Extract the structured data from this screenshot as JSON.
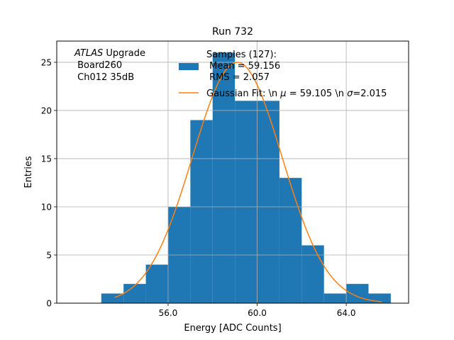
{
  "chart_data": {
    "type": "bar",
    "title": "Run 732",
    "xlabel": "Energy [ADC Counts]",
    "ylabel": "Entries",
    "xlim": [
      51.0,
      66.8
    ],
    "ylim": [
      0,
      27.2
    ],
    "xticks": [
      56.0,
      60.0,
      64.0
    ],
    "xtick_labels": [
      "56.0",
      "60.0",
      "64.0"
    ],
    "yticks": [
      0,
      5,
      10,
      15,
      20,
      25
    ],
    "ytick_labels": [
      "0",
      "5",
      "10",
      "15",
      "20",
      "25"
    ],
    "grid": true,
    "histogram": {
      "name": "Samples (127):",
      "color": "#1f77b4",
      "bin_edges": [
        53.0,
        54.0,
        55.0,
        56.0,
        57.0,
        58.0,
        59.0,
        60.0,
        61.0,
        62.0,
        63.0,
        64.0,
        65.0,
        66.0
      ],
      "counts": [
        1,
        2,
        4,
        10,
        19,
        26,
        21,
        21,
        13,
        6,
        1,
        2,
        1
      ]
    },
    "fit": {
      "name": "Gaussian Fit",
      "color": "#ff7f0e",
      "amplitude": 25.0,
      "mu": 59.105,
      "sigma": 2.015,
      "x_range": [
        53.6,
        65.6
      ]
    },
    "annotation": {
      "italic": "ATLAS",
      "rest": " Upgrade",
      "line2": " Board260",
      "line3": " Ch012 35dB"
    },
    "legend": {
      "position": "top-right",
      "hist_title": "Samples (127):",
      "hist_mean": " Mean = 59.156",
      "hist_rms": " RMS = 2.057",
      "fit_prefix": "Gaussian Fit: \\n ",
      "fit_mu_symbol": "μ",
      "fit_mu_text": " = 59.105 \\n ",
      "fit_sigma_symbol": "σ",
      "fit_sigma_text": "=2.015"
    }
  }
}
